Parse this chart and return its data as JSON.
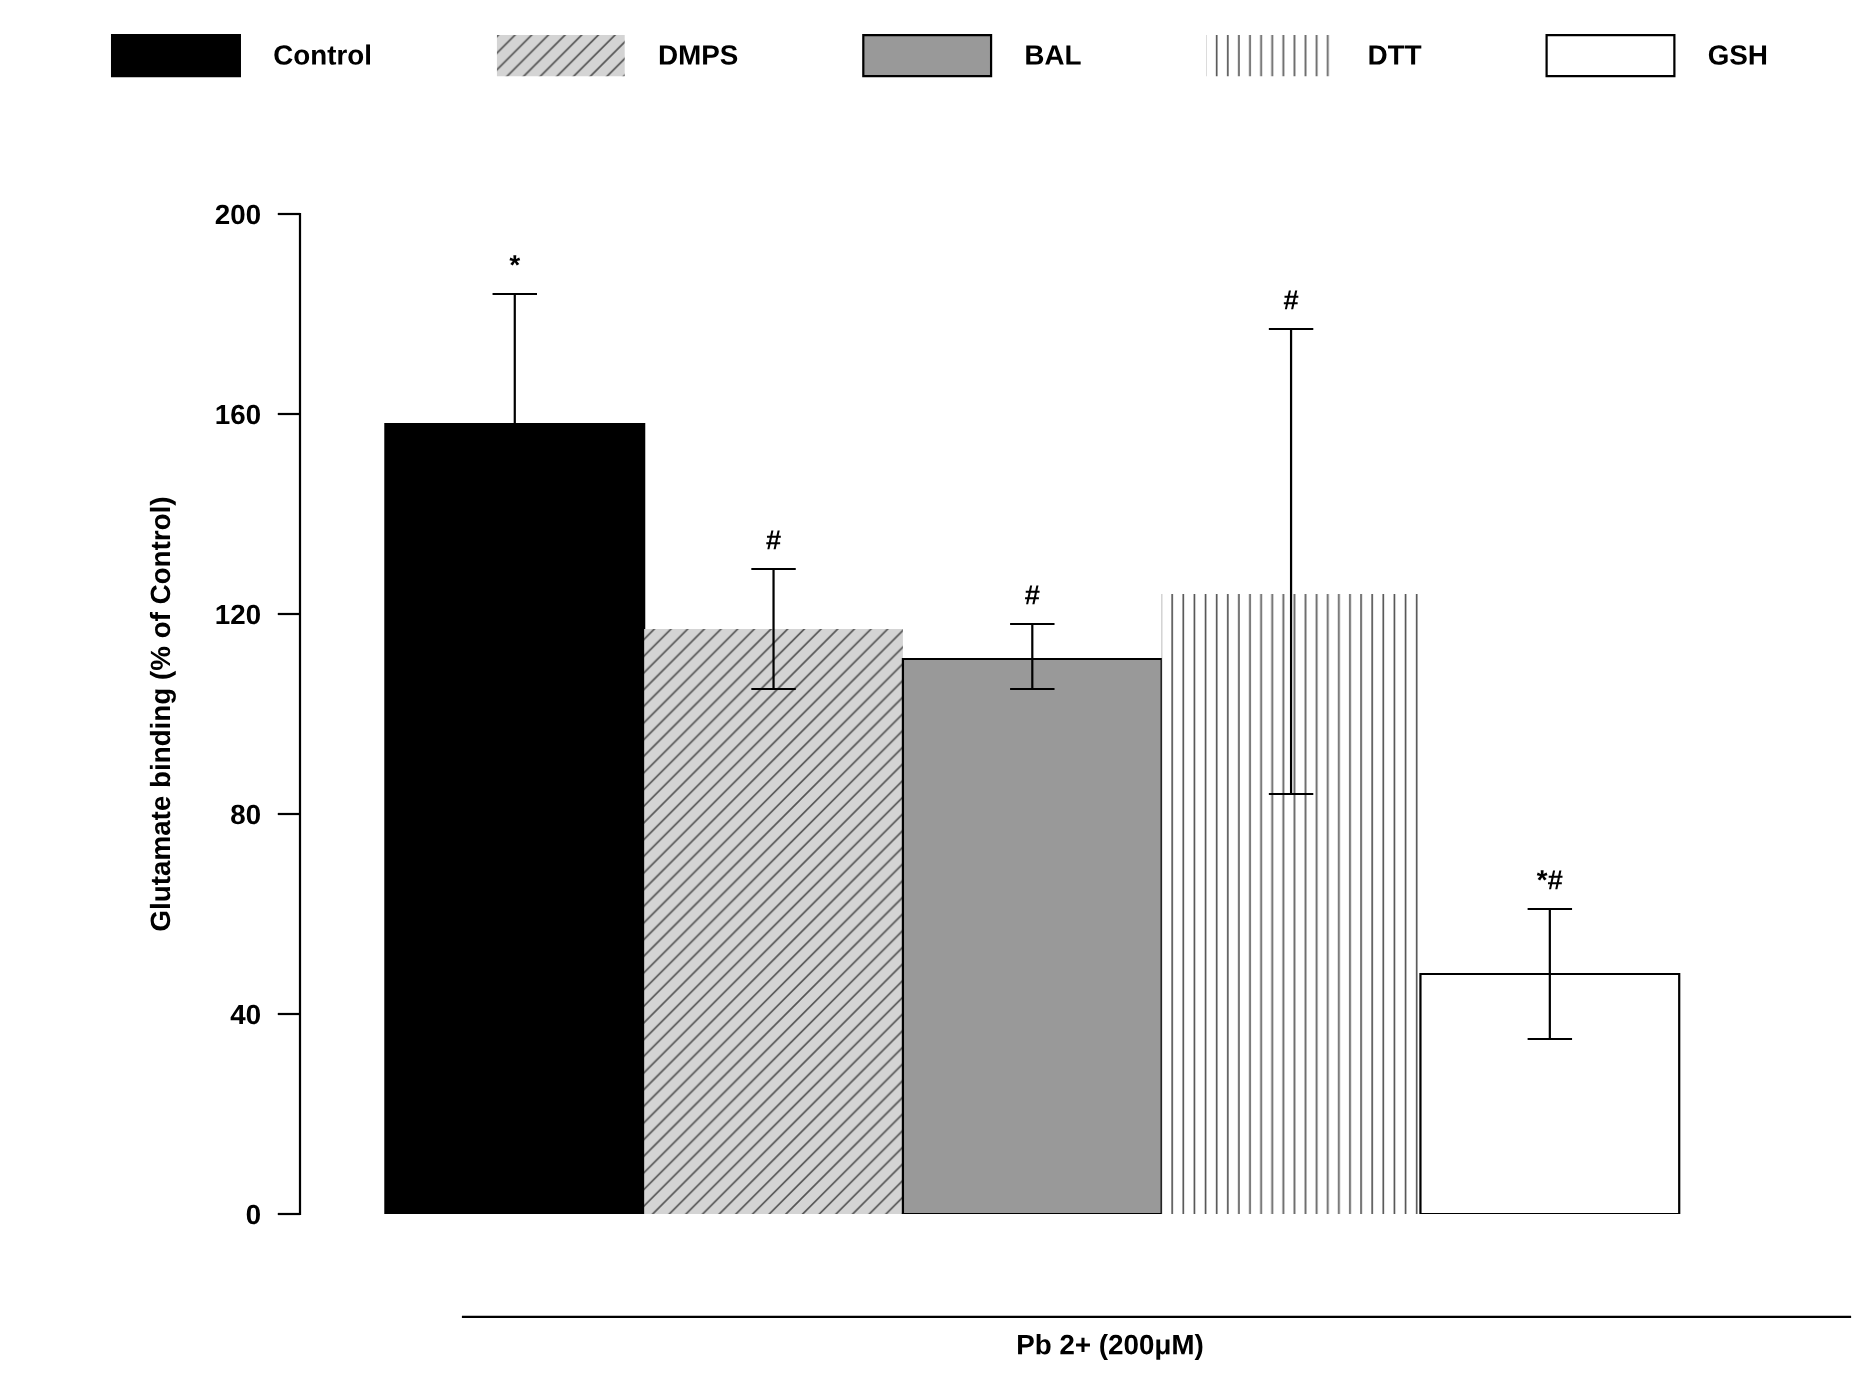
{
  "chart_data": {
    "type": "bar",
    "xlabel": "Pb 2+ (200μM)",
    "ylabel": "Glutamate binding (% of Control)",
    "categories": [
      null
    ],
    "series": [
      {
        "name": "Control",
        "color": "#000000",
        "values": [
          158
        ],
        "errors": [
          [
            158,
            184
          ]
        ]
      },
      {
        "name": "DMPS",
        "color": "#d4d4d4",
        "values": [
          117
        ],
        "errors": [
          [
            105,
            129
          ]
        ]
      },
      {
        "name": "BAL",
        "color": "#999999",
        "values": [
          111
        ],
        "errors": [
          [
            105,
            118
          ]
        ]
      },
      {
        "name": "DTT",
        "color": "#ffffff",
        "values": [
          124
        ],
        "errors": [
          [
            84,
            177
          ]
        ]
      },
      {
        "name": "GSH",
        "color": "#ffffff",
        "values": [
          48
        ],
        "errors": [
          [
            35,
            61
          ]
        ]
      }
    ],
    "annotations": [
      {
        "text": "*",
        "y": 184
      },
      {
        "text": "#",
        "y": 129
      },
      {
        "text": "#",
        "y": 118
      },
      {
        "text": "#",
        "y": 177
      },
      {
        "text": "*#",
        "y": 61
      }
    ],
    "ylim": [
      0,
      200
    ],
    "yticks": [
      0,
      40,
      80,
      120,
      160,
      200
    ],
    "grid": false,
    "legend": "top"
  }
}
